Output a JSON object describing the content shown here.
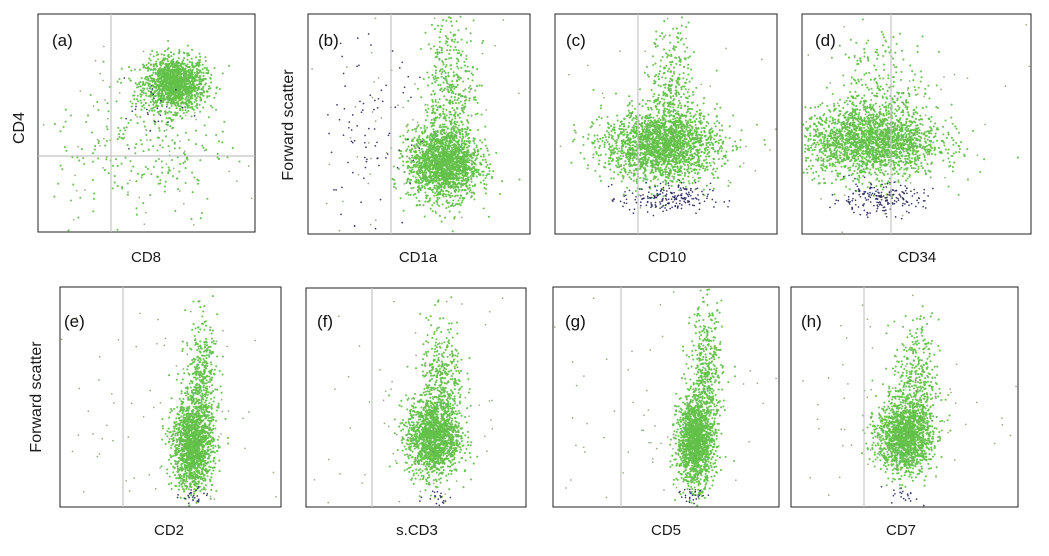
{
  "figure": {
    "colors": {
      "main_population": "#63c14a",
      "secondary_population": "#2c2c66",
      "sparse_events": "#6f8f5e",
      "gate_line": "#c4c4c4",
      "frame": "#222222"
    }
  },
  "chart_data": [
    {
      "id": "a",
      "panel_label": "(a)",
      "type": "scatter",
      "xlabel": "CD8",
      "ylabel": "CD4",
      "axes": {
        "x_scale": "log",
        "y_scale": "log",
        "ticks_printed": false
      },
      "gate": {
        "vertical": 0.34,
        "horizontal": 0.35
      },
      "populations": [
        {
          "color": "main_population",
          "center": [
            0.63,
            0.68
          ],
          "spread": [
            0.07,
            0.06
          ],
          "count": 1500
        },
        {
          "color": "main_population",
          "center": [
            0.48,
            0.4
          ],
          "spread": [
            0.2,
            0.18
          ],
          "count": 260
        },
        {
          "color": "secondary_population",
          "center": [
            0.55,
            0.55
          ],
          "spread": [
            0.08,
            0.08
          ],
          "count": 25
        },
        {
          "color": "sparse_events",
          "center": [
            0.45,
            0.35
          ],
          "spread": [
            0.3,
            0.28
          ],
          "count": 60
        }
      ]
    },
    {
      "id": "b",
      "panel_label": "(b)",
      "type": "scatter",
      "xlabel": "CD1a",
      "ylabel": "Forward scatter",
      "axes": {
        "x_scale": "log",
        "y_scale": "linear",
        "ticks_printed": false
      },
      "gate": {
        "vertical": 0.32
      },
      "populations": [
        {
          "color": "main_population",
          "center": [
            0.61,
            0.32
          ],
          "spread": [
            0.08,
            0.08
          ],
          "count": 1800
        },
        {
          "color": "main_population",
          "center": [
            0.64,
            0.6
          ],
          "spread": [
            0.06,
            0.2
          ],
          "count": 500
        },
        {
          "color": "secondary_population",
          "center": [
            0.26,
            0.45
          ],
          "spread": [
            0.12,
            0.22
          ],
          "count": 90
        },
        {
          "color": "sparse_events",
          "center": [
            0.4,
            0.45
          ],
          "spread": [
            0.3,
            0.3
          ],
          "count": 80
        }
      ]
    },
    {
      "id": "c",
      "panel_label": "(c)",
      "type": "scatter",
      "xlabel": "CD10",
      "ylabel": "",
      "axes": {
        "x_scale": "log",
        "y_scale": "linear",
        "ticks_printed": false
      },
      "gate": {
        "vertical": 0.37
      },
      "populations": [
        {
          "color": "main_population",
          "center": [
            0.48,
            0.4
          ],
          "spread": [
            0.13,
            0.08
          ],
          "count": 2000
        },
        {
          "color": "main_population",
          "center": [
            0.53,
            0.63
          ],
          "spread": [
            0.05,
            0.15
          ],
          "count": 350
        },
        {
          "color": "secondary_population",
          "center": [
            0.5,
            0.16
          ],
          "spread": [
            0.1,
            0.035
          ],
          "count": 200
        },
        {
          "color": "sparse_events",
          "center": [
            0.5,
            0.5
          ],
          "spread": [
            0.35,
            0.3
          ],
          "count": 60
        }
      ]
    },
    {
      "id": "d",
      "panel_label": "(d)",
      "type": "scatter",
      "xlabel": "CD34",
      "ylabel": "",
      "axes": {
        "x_scale": "log",
        "y_scale": "linear",
        "ticks_printed": false
      },
      "gate": {
        "vertical": 0.45
      },
      "populations": [
        {
          "color": "main_population",
          "center": [
            0.3,
            0.42
          ],
          "spread": [
            0.15,
            0.08
          ],
          "count": 2000
        },
        {
          "color": "main_population",
          "center": [
            0.35,
            0.62
          ],
          "spread": [
            0.1,
            0.15
          ],
          "count": 300
        },
        {
          "color": "secondary_population",
          "center": [
            0.33,
            0.16
          ],
          "spread": [
            0.1,
            0.035
          ],
          "count": 200
        },
        {
          "color": "sparse_events",
          "center": [
            0.5,
            0.5
          ],
          "spread": [
            0.35,
            0.3
          ],
          "count": 60
        }
      ]
    },
    {
      "id": "e",
      "panel_label": "(e)",
      "type": "scatter",
      "xlabel": "CD2",
      "ylabel": "Forward scatter",
      "axes": {
        "x_scale": "log",
        "y_scale": "linear",
        "ticks_printed": false
      },
      "gate": {
        "vertical": 0.22
      },
      "populations": [
        {
          "color": "main_population",
          "center": [
            0.6,
            0.28
          ],
          "spread": [
            0.045,
            0.1
          ],
          "count": 1500
        },
        {
          "color": "main_population",
          "center": [
            0.64,
            0.55
          ],
          "spread": [
            0.035,
            0.15
          ],
          "count": 450
        },
        {
          "color": "secondary_population",
          "center": [
            0.6,
            0.05
          ],
          "spread": [
            0.03,
            0.02
          ],
          "count": 25
        },
        {
          "color": "sparse_events",
          "center": [
            0.5,
            0.45
          ],
          "spread": [
            0.3,
            0.3
          ],
          "count": 80
        }
      ]
    },
    {
      "id": "f",
      "panel_label": "(f)",
      "type": "scatter",
      "xlabel": "s.CD3",
      "ylabel": "",
      "axes": {
        "x_scale": "log",
        "y_scale": "linear",
        "ticks_printed": false
      },
      "gate": {
        "vertical": 0.3
      },
      "populations": [
        {
          "color": "main_population",
          "center": [
            0.58,
            0.32
          ],
          "spread": [
            0.06,
            0.09
          ],
          "count": 1500
        },
        {
          "color": "main_population",
          "center": [
            0.62,
            0.55
          ],
          "spread": [
            0.05,
            0.15
          ],
          "count": 400
        },
        {
          "color": "secondary_population",
          "center": [
            0.6,
            0.05
          ],
          "spread": [
            0.03,
            0.02
          ],
          "count": 20
        },
        {
          "color": "sparse_events",
          "center": [
            0.5,
            0.45
          ],
          "spread": [
            0.3,
            0.3
          ],
          "count": 80
        }
      ]
    },
    {
      "id": "g",
      "panel_label": "(g)",
      "type": "scatter",
      "xlabel": "CD5",
      "ylabel": "",
      "axes": {
        "x_scale": "log",
        "y_scale": "linear",
        "ticks_printed": false
      },
      "gate": {
        "vertical": 0.29
      },
      "populations": [
        {
          "color": "main_population",
          "center": [
            0.63,
            0.3
          ],
          "spread": [
            0.04,
            0.1
          ],
          "count": 1500
        },
        {
          "color": "main_population",
          "center": [
            0.68,
            0.58
          ],
          "spread": [
            0.035,
            0.17
          ],
          "count": 450
        },
        {
          "color": "secondary_population",
          "center": [
            0.62,
            0.06
          ],
          "spread": [
            0.03,
            0.02
          ],
          "count": 25
        },
        {
          "color": "sparse_events",
          "center": [
            0.5,
            0.45
          ],
          "spread": [
            0.3,
            0.3
          ],
          "count": 70
        }
      ]
    },
    {
      "id": "h",
      "panel_label": "(h)",
      "type": "scatter",
      "xlabel": "CD7",
      "ylabel": "",
      "axes": {
        "x_scale": "log",
        "y_scale": "linear",
        "ticks_printed": false
      },
      "gate": {
        "vertical": 0.33
      },
      "populations": [
        {
          "color": "main_population",
          "center": [
            0.5,
            0.32
          ],
          "spread": [
            0.06,
            0.08
          ],
          "count": 1500
        },
        {
          "color": "main_population",
          "center": [
            0.55,
            0.55
          ],
          "spread": [
            0.05,
            0.15
          ],
          "count": 400
        },
        {
          "color": "secondary_population",
          "center": [
            0.5,
            0.05
          ],
          "spread": [
            0.03,
            0.02
          ],
          "count": 20
        },
        {
          "color": "sparse_events",
          "center": [
            0.5,
            0.45
          ],
          "spread": [
            0.3,
            0.3
          ],
          "count": 70
        }
      ]
    }
  ]
}
